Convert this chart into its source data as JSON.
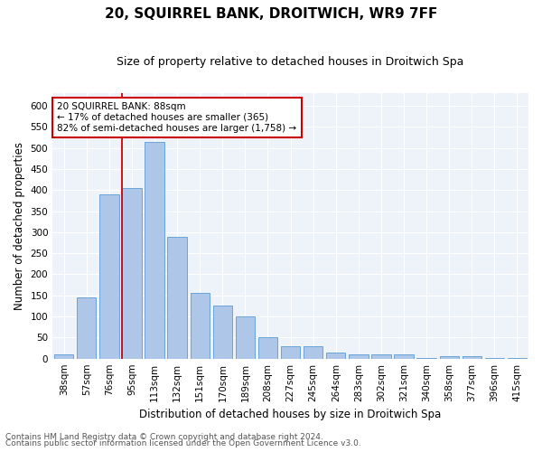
{
  "title1": "20, SQUIRREL BANK, DROITWICH, WR9 7FF",
  "title2": "Size of property relative to detached houses in Droitwich Spa",
  "xlabel": "Distribution of detached houses by size in Droitwich Spa",
  "ylabel": "Number of detached properties",
  "categories": [
    "38sqm",
    "57sqm",
    "76sqm",
    "95sqm",
    "113sqm",
    "132sqm",
    "151sqm",
    "170sqm",
    "189sqm",
    "208sqm",
    "227sqm",
    "245sqm",
    "264sqm",
    "283sqm",
    "302sqm",
    "321sqm",
    "340sqm",
    "358sqm",
    "377sqm",
    "396sqm",
    "415sqm"
  ],
  "values": [
    10,
    145,
    390,
    405,
    515,
    290,
    155,
    125,
    100,
    50,
    30,
    30,
    15,
    10,
    10,
    10,
    2,
    5,
    5,
    2,
    2
  ],
  "bar_color": "#aec6e8",
  "bar_edge_color": "#5b9bd5",
  "vline_color": "#cc0000",
  "vline_x": 2.55,
  "ylim": [
    0,
    630
  ],
  "yticks": [
    0,
    50,
    100,
    150,
    200,
    250,
    300,
    350,
    400,
    450,
    500,
    550,
    600
  ],
  "annotation_text": "20 SQUIRREL BANK: 88sqm\n← 17% of detached houses are smaller (365)\n82% of semi-detached houses are larger (1,758) →",
  "annotation_box_color": "#ffffff",
  "annotation_border_color": "#cc0000",
  "footer1": "Contains HM Land Registry data © Crown copyright and database right 2024.",
  "footer2": "Contains public sector information licensed under the Open Government Licence v3.0.",
  "background_color": "#eef2f9",
  "grid_color": "#ffffff",
  "title1_fontsize": 11,
  "title2_fontsize": 9,
  "xlabel_fontsize": 8.5,
  "ylabel_fontsize": 8.5,
  "tick_fontsize": 7.5,
  "footer_fontsize": 6.5,
  "annot_fontsize": 7.5
}
